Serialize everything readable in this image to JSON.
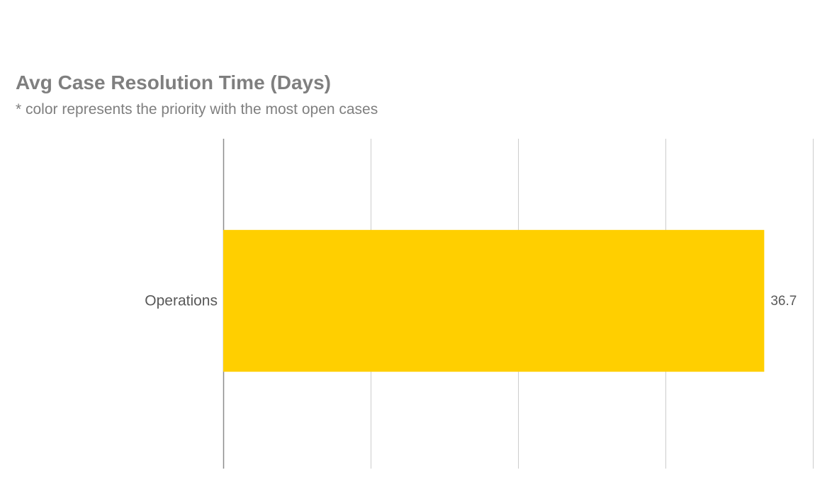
{
  "chart_data": {
    "type": "bar",
    "orientation": "horizontal",
    "title": "Avg Case Resolution Time (Days)",
    "subtitle": "* color represents the priority with the most open cases",
    "categories": [
      "Operations"
    ],
    "values": [
      36.7
    ],
    "value_labels": [
      "36.7"
    ],
    "xlim": [
      0,
      40
    ],
    "grid": true,
    "bar_color": "#ffcf00",
    "grid_color": "#cccccc",
    "axis_color": "#8c8c8c"
  }
}
